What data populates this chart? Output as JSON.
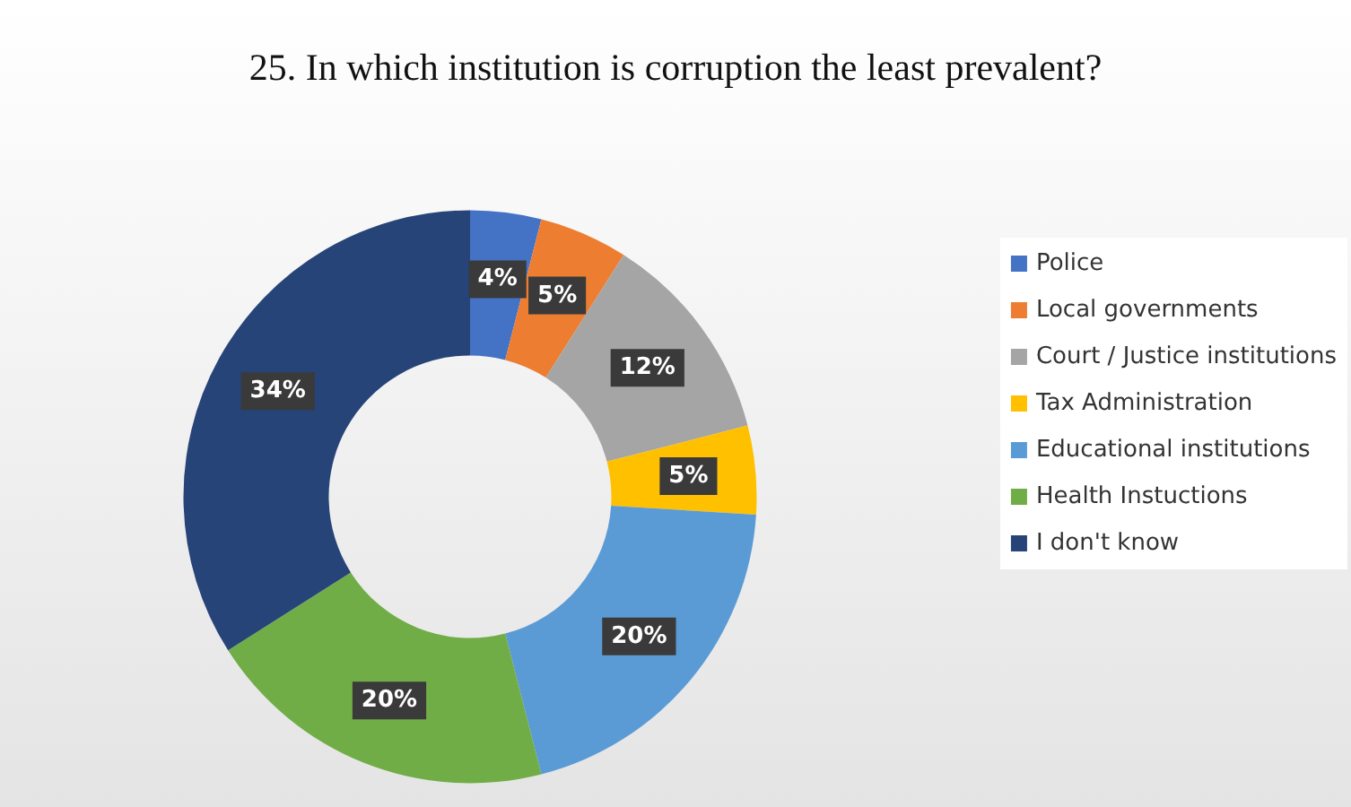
{
  "chart_data": {
    "type": "donut",
    "title": "25. In which institution is corruption the least prevalent?",
    "categories": [
      "Police",
      "Local governments",
      "Court / Justice institutions",
      "Tax Administration",
      "Educational institutions",
      "Health Instuctions",
      "I don't know"
    ],
    "values": [
      4,
      5,
      12,
      5,
      20,
      20,
      34
    ],
    "value_labels": [
      "4%",
      "5%",
      "12%",
      "5%",
      "20%",
      "20%",
      "34%"
    ],
    "colors": [
      "#4472c4",
      "#ed7d31",
      "#a5a5a5",
      "#ffc000",
      "#5b9bd5",
      "#70ad47",
      "#264478"
    ],
    "legend": "right"
  }
}
